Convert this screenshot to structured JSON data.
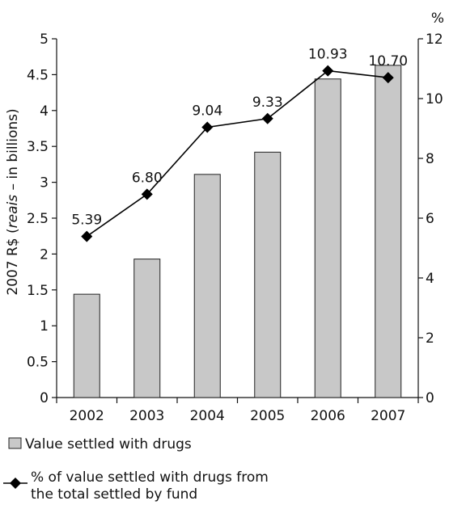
{
  "chart_data": {
    "type": "bar",
    "categories": [
      "2002",
      "2003",
      "2004",
      "2005",
      "2006",
      "2007"
    ],
    "series": [
      {
        "name": "Value settled with drugs",
        "type": "bar",
        "axis": "left",
        "values": [
          1.44,
          1.93,
          3.11,
          3.42,
          4.44,
          4.63
        ]
      },
      {
        "name": "% of value settled with drugs from the total settled by fund",
        "type": "line",
        "axis": "right",
        "values": [
          5.39,
          6.8,
          9.04,
          9.33,
          10.93,
          10.7
        ],
        "labels": [
          "5.39",
          "6.80",
          "9.04",
          "9.33",
          "10.93",
          "10.70"
        ]
      }
    ],
    "ylabel": {
      "pre": "2007 R$ (",
      "italic": "reais",
      "post": " – in billions)"
    },
    "y2label": "%",
    "ylim": [
      0,
      5
    ],
    "y2lim": [
      0,
      12
    ],
    "yticks": [
      "0",
      "0.5",
      "1",
      "1.5",
      "2",
      "2.5",
      "3",
      "3.5",
      "4",
      "4.5",
      "5"
    ],
    "y2ticks": [
      "0",
      "2",
      "4",
      "6",
      "8",
      "10",
      "12"
    ],
    "legend": {
      "bar_label": "Value settled with drugs",
      "line_label_lines": [
        "% of value settled with drugs from",
        "the total settled by fund"
      ]
    },
    "colors": {
      "bar_fill": "#c8c8c8",
      "bar_stroke": "#222222",
      "line": "#000000",
      "marker": "#000000"
    },
    "grid": false,
    "legend_position": "bottom-left"
  }
}
